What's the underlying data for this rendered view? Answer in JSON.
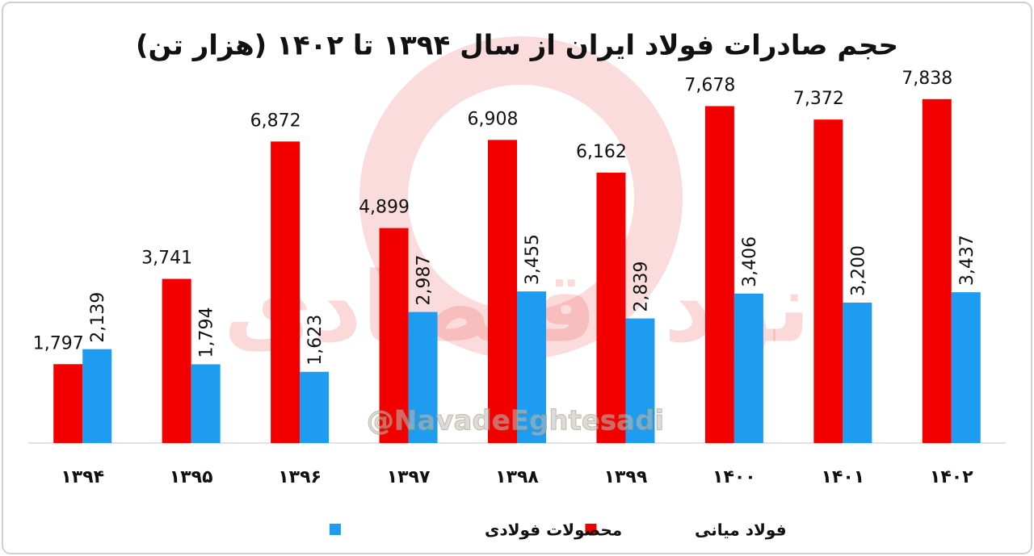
{
  "chart_data": {
    "type": "bar",
    "title": "حجم صادرات فولاد ایران از سال ۱۳۹۴ تا ۱۴۰۲ (هزار تن)",
    "watermark": "@NavadeEghtesadi",
    "logo": "نود اقتصادی",
    "categories": [
      "۱۳۹۴",
      "۱۳۹۵",
      "۱۳۹۶",
      "۱۳۹۷",
      "۱۳۹۸",
      "۱۳۹۹",
      "۱۴۰۰",
      "۱۴۰۱",
      "۱۴۰۲"
    ],
    "series": [
      {
        "name": "فولاد میانی",
        "color": "#f20000",
        "values": [
          1797,
          3741,
          6872,
          4899,
          6908,
          6162,
          7678,
          7372,
          7838
        ],
        "value_labels": [
          "1,797",
          "3,741",
          "6,872",
          "4,899",
          "6,908",
          "6,162",
          "7,678",
          "7,372",
          "7,838"
        ]
      },
      {
        "name": "محصولات فولادی",
        "color": "#1e9cf0",
        "values": [
          2139,
          1794,
          1623,
          2987,
          3455,
          2839,
          3406,
          3200,
          3437
        ],
        "value_labels": [
          "2,139",
          "1,794",
          "1,623",
          "2,987",
          "3,455",
          "2,839",
          "3,406",
          "3,200",
          "3,437"
        ]
      }
    ],
    "ylim": [
      0,
      8000
    ],
    "grid": false
  }
}
